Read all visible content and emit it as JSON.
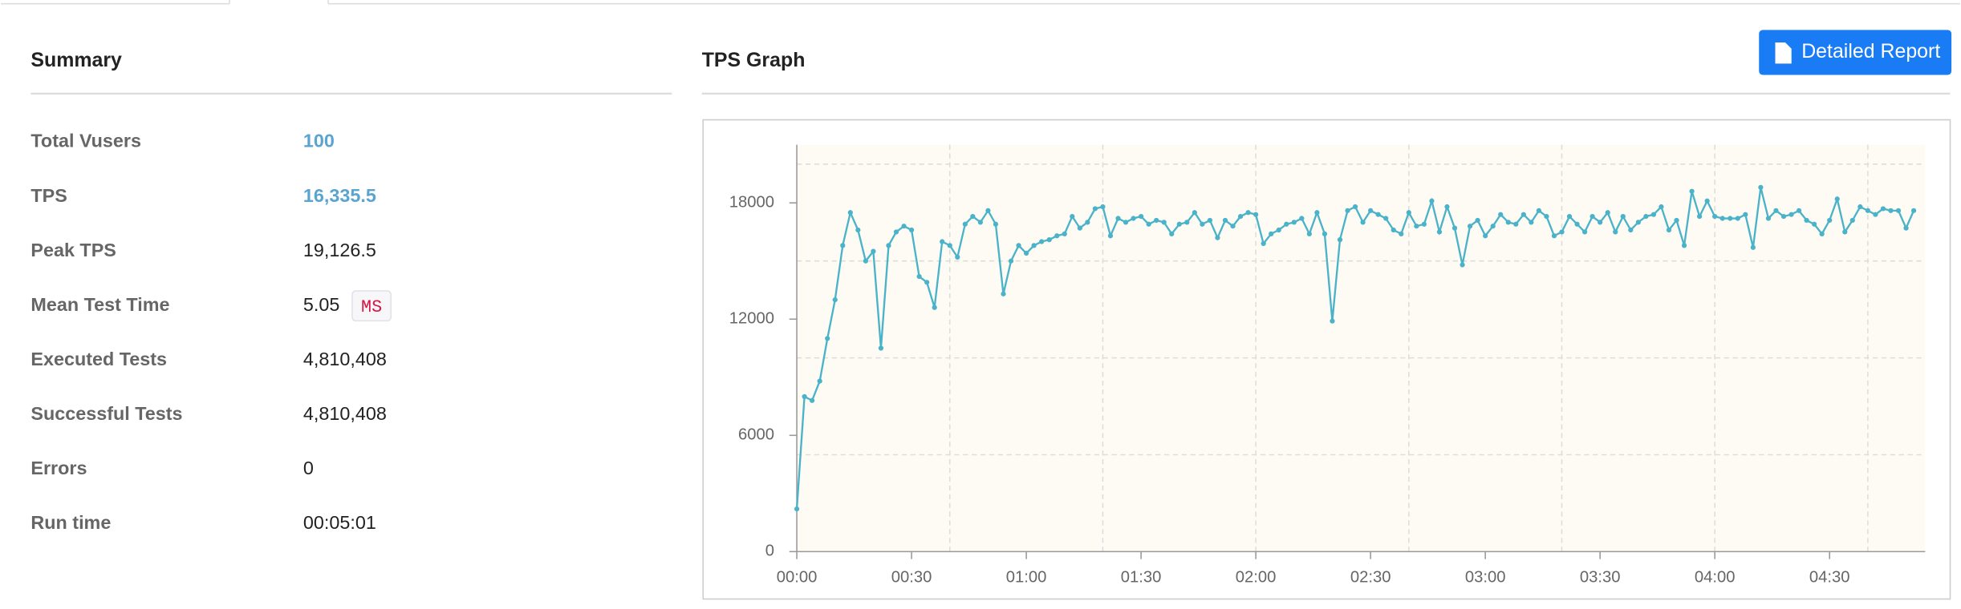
{
  "summary": {
    "title": "Summary",
    "rows": [
      {
        "label": "Total Vusers",
        "value": "100"
      },
      {
        "label": "TPS",
        "value": "16,335.5"
      },
      {
        "label": "Peak TPS",
        "value": "19,126.5"
      },
      {
        "label": "Mean Test Time",
        "value": "5.05",
        "unit": "MS"
      },
      {
        "label": "Executed Tests",
        "value": "4,810,408"
      },
      {
        "label": "Successful Tests",
        "value": "4,810,408"
      },
      {
        "label": "Errors",
        "value": "0"
      },
      {
        "label": "Run time",
        "value": "00:05:01"
      }
    ]
  },
  "button": "Detailed Report",
  "chart_data": {
    "type": "line",
    "title": "TPS Graph",
    "color": "#4ab3c9",
    "x": [
      0,
      2,
      4,
      6,
      8,
      10,
      12,
      14,
      16,
      18,
      20,
      22,
      24,
      26,
      28,
      30,
      32,
      34,
      36,
      38,
      40,
      42,
      44,
      46,
      48,
      50,
      52,
      54,
      56,
      58,
      60,
      62,
      64,
      66,
      68,
      70,
      72,
      74,
      76,
      78,
      80,
      82,
      84,
      86,
      88,
      90,
      92,
      94,
      96,
      98,
      100,
      102,
      104,
      106,
      108,
      110,
      112,
      114,
      116,
      118,
      120,
      122,
      124,
      126,
      128,
      130,
      132,
      134,
      136,
      138,
      140,
      142,
      144,
      146,
      148,
      150,
      152,
      154,
      156,
      158,
      160,
      162,
      164,
      166,
      168,
      170,
      172,
      174,
      176,
      178,
      180,
      182,
      184,
      186,
      188,
      190,
      192,
      194,
      196,
      198,
      200,
      202,
      204,
      206,
      208,
      210,
      212,
      214,
      216,
      218,
      220,
      222,
      224,
      226,
      228,
      230,
      232,
      234,
      236,
      238,
      240,
      242,
      244,
      246,
      248,
      250,
      252,
      254,
      256,
      258,
      260,
      262,
      264,
      266,
      268,
      270,
      272,
      274,
      276,
      278,
      280,
      282,
      284,
      286,
      288,
      290,
      292
    ],
    "values": [
      2200,
      8000,
      7800,
      8800,
      11000,
      13000,
      15800,
      17500,
      16600,
      15000,
      15500,
      10500,
      15800,
      16500,
      16800,
      16600,
      14200,
      13900,
      12600,
      16000,
      15800,
      15200,
      16900,
      17300,
      17000,
      17600,
      16900,
      13300,
      15000,
      15800,
      15400,
      15800,
      16000,
      16100,
      16300,
      16400,
      17300,
      16700,
      17000,
      17700,
      17800,
      16300,
      17200,
      17000,
      17200,
      17300,
      16900,
      17100,
      17000,
      16400,
      16900,
      17000,
      17500,
      16900,
      17100,
      16200,
      17100,
      16800,
      17300,
      17500,
      17400,
      15900,
      16400,
      16600,
      16900,
      17000,
      17200,
      16400,
      17500,
      16400,
      11900,
      16100,
      17600,
      17800,
      17000,
      17600,
      17400,
      17200,
      16600,
      16400,
      17500,
      16800,
      16900,
      18100,
      16500,
      17800,
      16700,
      14800,
      16800,
      17100,
      16300,
      16800,
      17400,
      17000,
      16900,
      17400,
      17000,
      17600,
      17300,
      16300,
      16500,
      17300,
      16900,
      16500,
      17300,
      17000,
      17500,
      16500,
      17300,
      16600,
      17000,
      17300,
      17400,
      17800,
      16600,
      17100,
      15800,
      18600,
      17300,
      18100,
      17300,
      17200,
      17200,
      17200,
      17400,
      15700,
      18800,
      17200,
      17600,
      17300,
      17400,
      17600,
      17100,
      16900,
      16400,
      17100,
      18200,
      16500,
      17100,
      17800,
      17600,
      17400,
      17700,
      17600,
      17600,
      16700,
      17600
    ],
    "xlim": [
      0,
      295
    ],
    "ylim": [
      0,
      21000
    ],
    "xticks": [
      {
        "value": 0,
        "label": "00:00"
      },
      {
        "value": 30,
        "label": "00:30"
      },
      {
        "value": 60,
        "label": "01:00"
      },
      {
        "value": 90,
        "label": "01:30"
      },
      {
        "value": 120,
        "label": "02:00"
      },
      {
        "value": 150,
        "label": "02:30"
      },
      {
        "value": 180,
        "label": "03:00"
      },
      {
        "value": 210,
        "label": "03:30"
      },
      {
        "value": 240,
        "label": "04:00"
      },
      {
        "value": 270,
        "label": "04:30"
      }
    ],
    "yticks": [
      0,
      6000,
      12000,
      18000
    ],
    "xgrid": [
      40,
      80,
      120,
      160,
      200,
      240,
      280
    ],
    "ygrid": [
      5000,
      10000,
      15000,
      20000
    ]
  }
}
